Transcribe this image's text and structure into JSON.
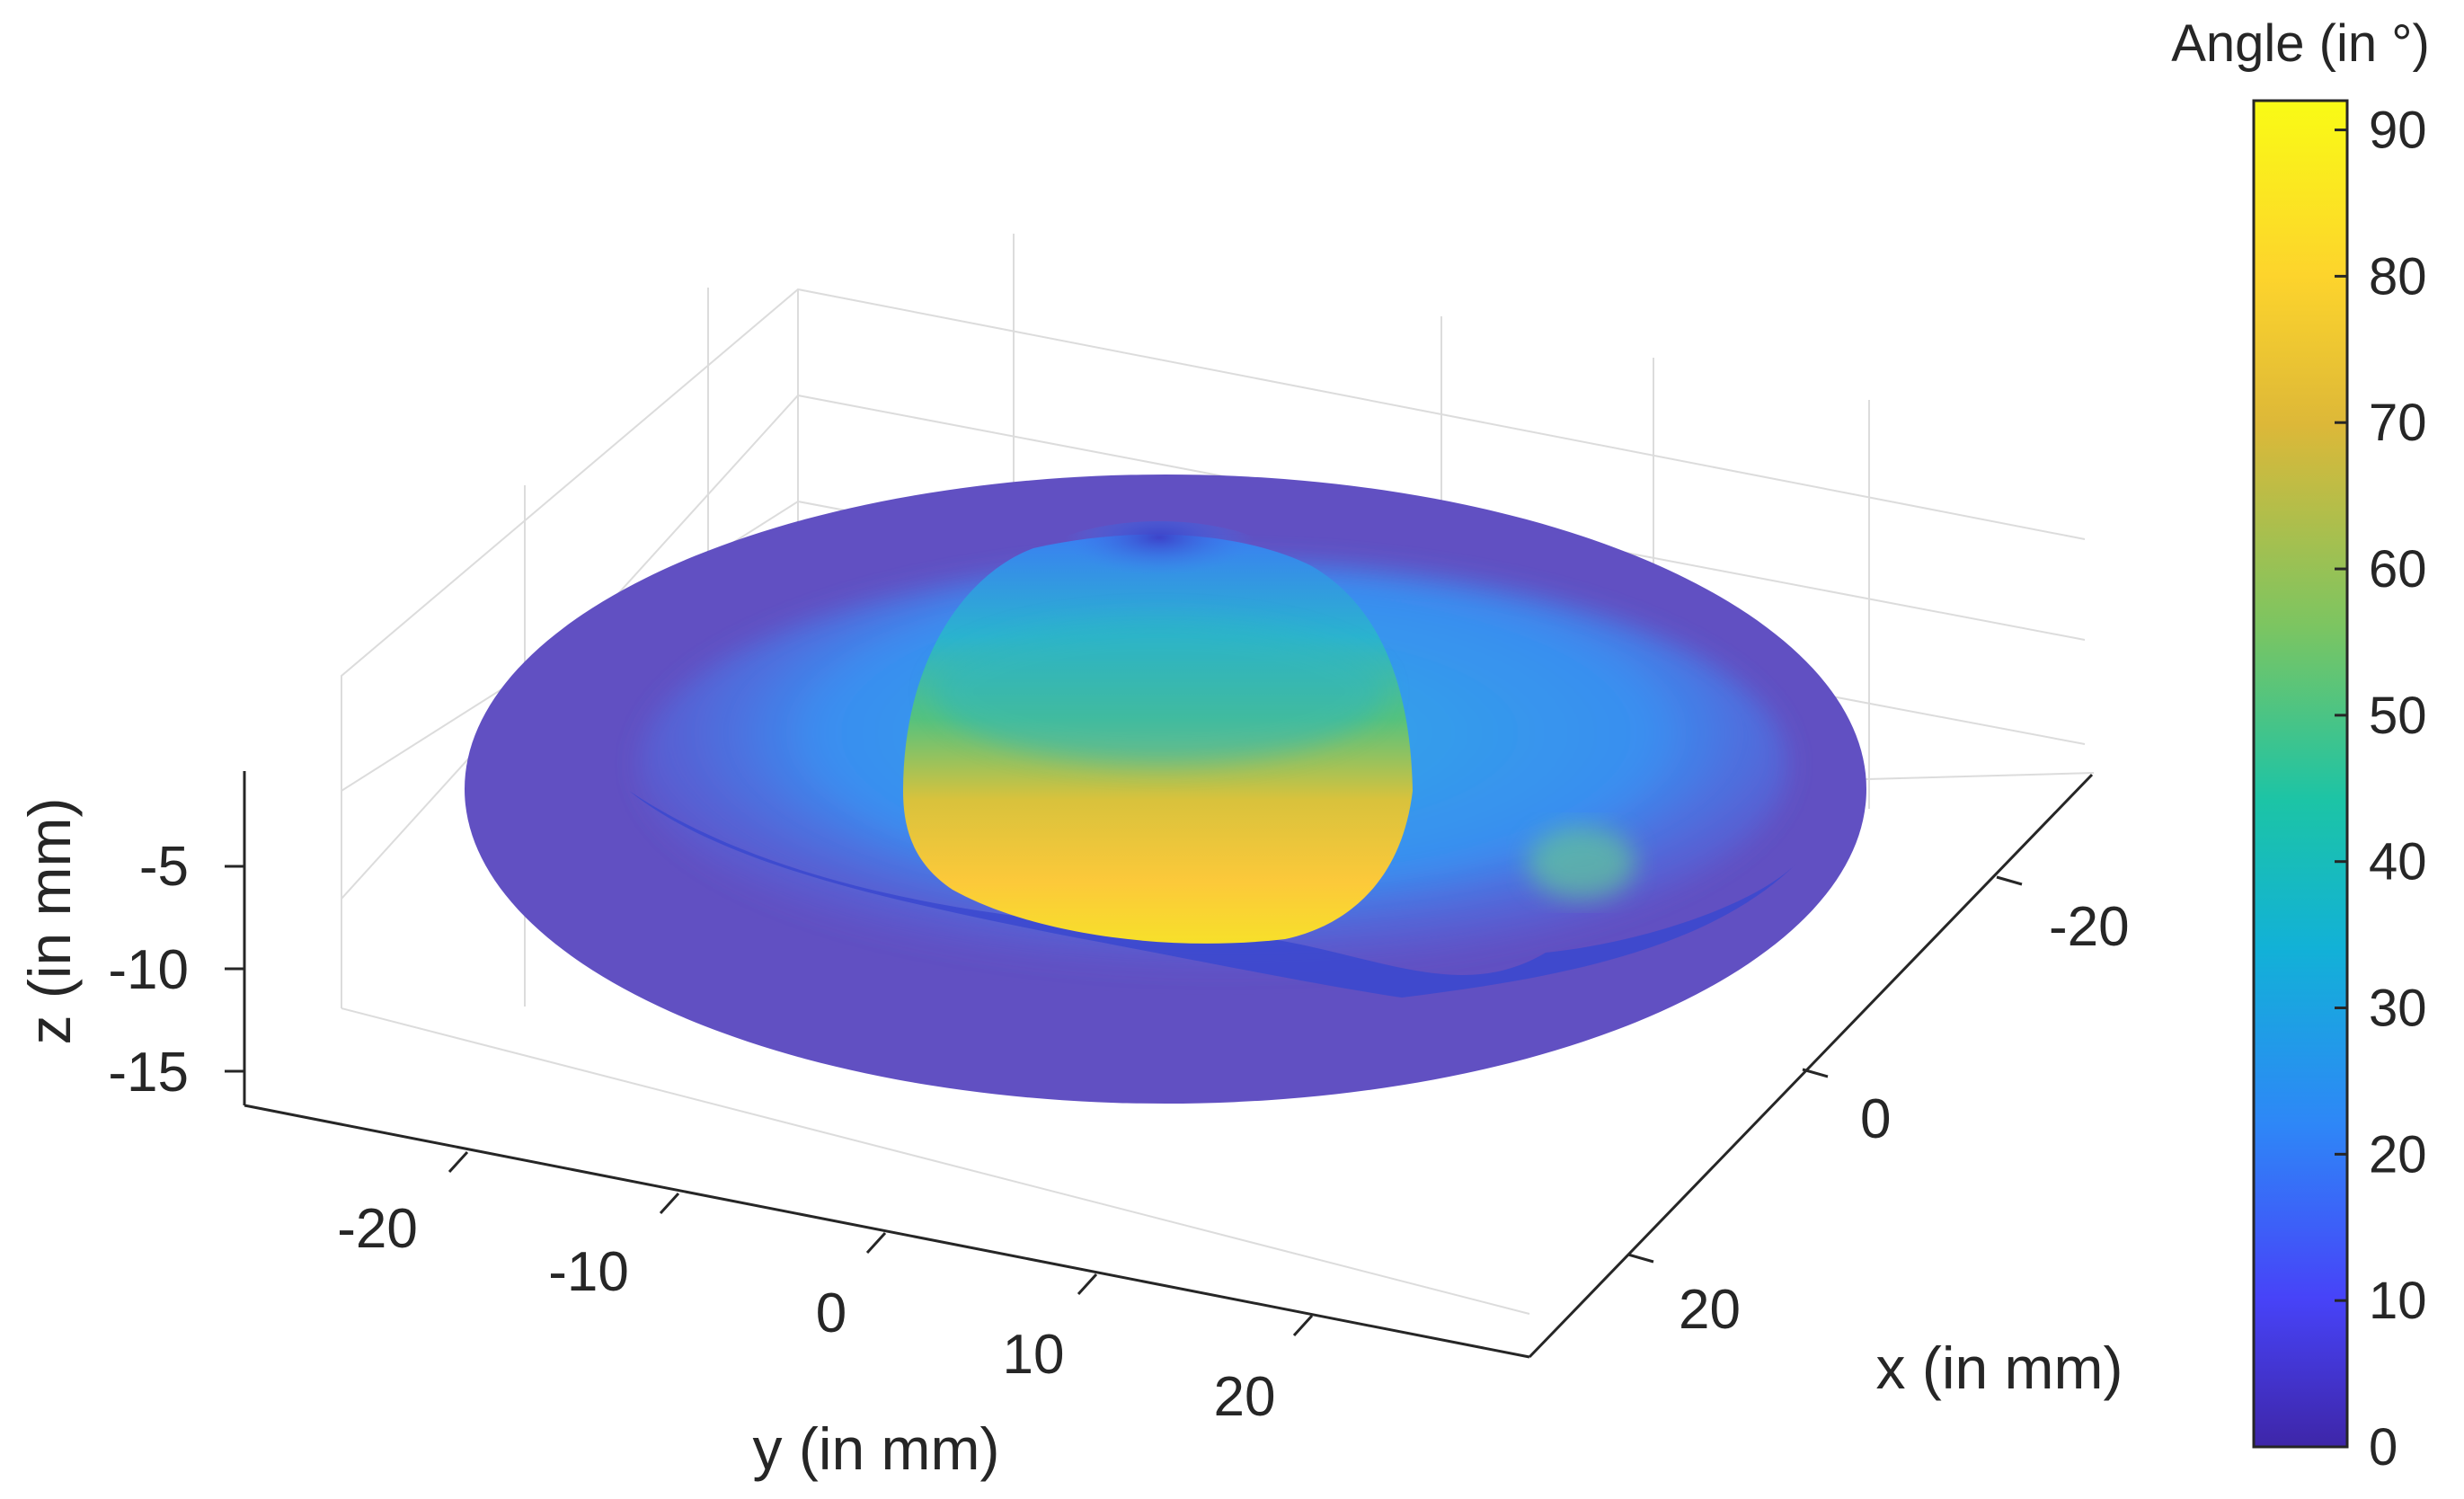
{
  "chart_data": {
    "type": "surface3d",
    "title": "",
    "xlabel": "x (in mm)",
    "ylabel": "y (in mm)",
    "zlabel": "z (in mm)",
    "x_ticks": [
      "-20",
      "0",
      "20"
    ],
    "y_ticks": [
      "-20",
      "-10",
      "0",
      "10",
      "20"
    ],
    "z_ticks": [
      "-5",
      "-10",
      "-15"
    ],
    "colorbar": {
      "title": "Angle (in °)",
      "ticks": [
        "0",
        "10",
        "20",
        "30",
        "40",
        "50",
        "60",
        "70",
        "80",
        "90"
      ],
      "min": 0,
      "max": 92,
      "colormap": "parula",
      "colors": [
        "#3e26a8",
        "#4743f8",
        "#2e87f7",
        "#12b1d7",
        "#1cc4a6",
        "#7cc561",
        "#ddb838",
        "#fdd42c",
        "#f9fb15"
      ]
    },
    "grid": true,
    "surface": {
      "shape": "disc with central dome",
      "outer_rim_angle": 5,
      "dome_peak_angle": 85
    }
  }
}
